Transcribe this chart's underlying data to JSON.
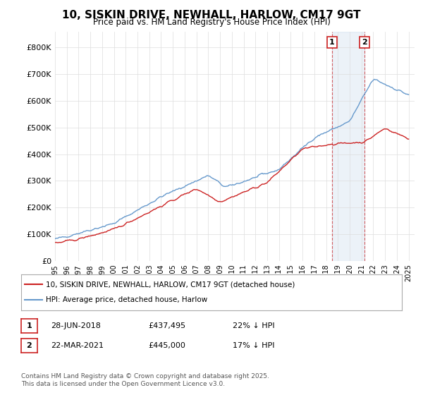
{
  "title": "10, SISKIN DRIVE, NEWHALL, HARLOW, CM17 9GT",
  "subtitle": "Price paid vs. HM Land Registry's House Price Index (HPI)",
  "ylabel_ticks": [
    "£0",
    "£100K",
    "£200K",
    "£300K",
    "£400K",
    "£500K",
    "£600K",
    "£700K",
    "£800K"
  ],
  "ytick_values": [
    0,
    100000,
    200000,
    300000,
    400000,
    500000,
    600000,
    700000,
    800000
  ],
  "ylim": [
    0,
    860000
  ],
  "xlim_start": 1995,
  "xlim_end": 2025.5,
  "hpi_color": "#6699cc",
  "price_color": "#cc2222",
  "vline_color": "#cc2222",
  "vline_alpha": 0.5,
  "marker1_year": 2018.5,
  "marker2_year": 2021.25,
  "marker1_label": "1",
  "marker2_label": "2",
  "legend_line1": "10, SISKIN DRIVE, NEWHALL, HARLOW, CM17 9GT (detached house)",
  "legend_line2": "HPI: Average price, detached house, Harlow",
  "table_row1": [
    "1",
    "28-JUN-2018",
    "£437,495",
    "22% ↓ HPI"
  ],
  "table_row2": [
    "2",
    "22-MAR-2021",
    "£445,000",
    "17% ↓ HPI"
  ],
  "footer": "Contains HM Land Registry data © Crown copyright and database right 2025.\nThis data is licensed under the Open Government Licence v3.0.",
  "background_color": "#ffffff",
  "grid_color": "#dddddd"
}
